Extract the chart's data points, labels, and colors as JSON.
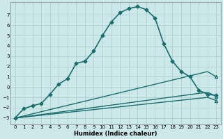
{
  "xlabel": "Humidex (Indice chaleur)",
  "background_color": "#cce8e8",
  "grid_color": "#aacccc",
  "line_color": "#1a6e6e",
  "x_ticks": [
    0,
    1,
    2,
    3,
    4,
    5,
    6,
    7,
    8,
    9,
    10,
    11,
    12,
    13,
    14,
    15,
    16,
    17,
    18,
    19,
    20,
    21,
    22,
    23
  ],
  "y_ticks": [
    -3,
    -2,
    -1,
    0,
    1,
    2,
    3,
    4,
    5,
    6,
    7
  ],
  "ylim": [
    -3.6,
    8.2
  ],
  "xlim": [
    -0.5,
    23.5
  ],
  "series": [
    {
      "x": [
        0,
        1,
        2,
        3,
        4,
        5,
        6,
        7,
        8,
        9,
        10,
        11,
        12,
        13,
        14,
        15,
        16,
        17,
        18,
        19,
        20,
        21,
        22,
        23
      ],
      "y": [
        -3.0,
        -2.1,
        -1.8,
        -1.6,
        -0.7,
        0.3,
        0.8,
        2.3,
        2.5,
        3.5,
        5.0,
        6.3,
        7.2,
        7.6,
        7.8,
        7.5,
        6.7,
        4.2,
        2.5,
        1.5,
        1.0,
        -0.3,
        -0.7,
        -0.8
      ],
      "marker": "D",
      "markersize": 2.5,
      "linewidth": 1.2
    },
    {
      "x": [
        0,
        22,
        23
      ],
      "y": [
        -3.0,
        -1.0,
        -1.3
      ],
      "marker": "^",
      "markersize": 3,
      "linewidth": 1.0,
      "markevery": [
        2
      ]
    },
    {
      "x": [
        0,
        22,
        23
      ],
      "y": [
        -3.0,
        -0.5,
        -0.9
      ],
      "marker": "^",
      "markersize": 3,
      "linewidth": 1.0,
      "markevery": [
        2
      ]
    },
    {
      "x": [
        0,
        22,
        23
      ],
      "y": [
        -3.0,
        1.5,
        1.0
      ],
      "marker": "^",
      "markersize": 3,
      "linewidth": 1.0,
      "markevery": [
        2
      ]
    }
  ],
  "tick_fontsize": 5.0,
  "xlabel_fontsize": 6.0
}
